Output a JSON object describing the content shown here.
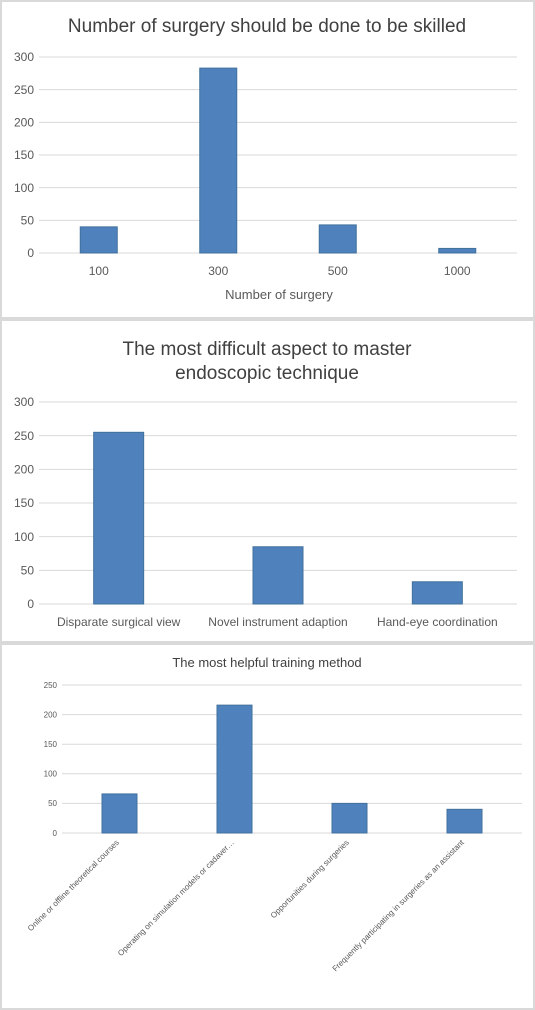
{
  "chart_data": [
    {
      "type": "bar",
      "title": "Number of surgery should be done to be skilled",
      "xlabel": "Number of surgery",
      "ylabel": "",
      "categories": [
        "100",
        "300",
        "500",
        "1000"
      ],
      "values": [
        40,
        283,
        43,
        7
      ],
      "ylim": [
        0,
        300
      ],
      "yticks": [
        0,
        50,
        100,
        150,
        200,
        250,
        300
      ],
      "grid": true,
      "color": "#4f81bd"
    },
    {
      "type": "bar",
      "title": "The most difficult aspect to master endoscopic technique",
      "xlabel": "",
      "ylabel": "",
      "categories": [
        "Disparate surgical view",
        "Novel instrument adaption",
        "Hand-eye coordination"
      ],
      "values": [
        255,
        85,
        33
      ],
      "ylim": [
        0,
        300
      ],
      "yticks": [
        0,
        50,
        100,
        150,
        200,
        250,
        300
      ],
      "grid": true,
      "color": "#4f81bd"
    },
    {
      "type": "bar",
      "title": "The most helpful training method",
      "xlabel": "",
      "ylabel": "",
      "categories": [
        "Online or offline theoretical courses",
        "Operating on simulation models or cadaver…",
        "Opportunities during surgeries",
        "Frequently participating in surgeries as an assistant"
      ],
      "values": [
        66,
        216,
        50,
        40
      ],
      "ylim": [
        0,
        250
      ],
      "yticks": [
        0,
        50,
        100,
        150,
        200,
        250
      ],
      "grid": true,
      "color": "#4f81bd"
    }
  ]
}
